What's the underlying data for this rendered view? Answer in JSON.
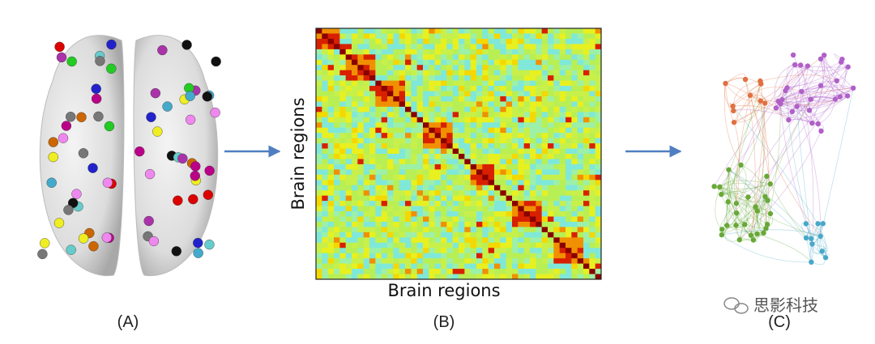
{
  "panels": [
    {
      "label": "(A)"
    },
    {
      "label": "(B)",
      "x_axis_label": "Brain regions",
      "y_axis_label": "Brain regions"
    },
    {
      "label": "(C)"
    }
  ],
  "watermark": "思影科技"
}
